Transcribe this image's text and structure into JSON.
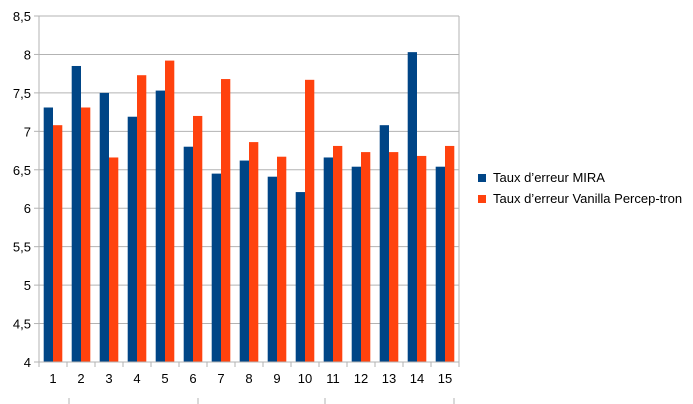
{
  "chart_data": {
    "type": "bar",
    "categories": [
      "1",
      "2",
      "3",
      "4",
      "5",
      "6",
      "7",
      "8",
      "9",
      "10",
      "11",
      "12",
      "13",
      "14",
      "15"
    ],
    "series": [
      {
        "name": "Taux d’erreur MIRA",
        "color": "#004586",
        "values": [
          7.31,
          7.85,
          7.5,
          7.19,
          7.53,
          6.8,
          6.45,
          6.62,
          6.41,
          6.21,
          6.66,
          6.54,
          7.08,
          8.03,
          6.54
        ]
      },
      {
        "name": "Taux d’erreur Vanilla Percep-tron",
        "color": "#ff420e",
        "values": [
          7.08,
          7.31,
          6.66,
          7.73,
          7.92,
          7.2,
          7.68,
          6.86,
          6.67,
          7.67,
          6.81,
          6.73,
          6.73,
          6.68,
          6.81
        ]
      }
    ],
    "ylim": [
      4,
      8.5
    ],
    "yticks": [
      "4",
      "4,5",
      "5",
      "5,5",
      "6",
      "6,5",
      "7",
      "7,5",
      "8",
      "8,5"
    ],
    "grid": true,
    "legend": "right",
    "title": "",
    "xlabel": "",
    "ylabel": ""
  }
}
